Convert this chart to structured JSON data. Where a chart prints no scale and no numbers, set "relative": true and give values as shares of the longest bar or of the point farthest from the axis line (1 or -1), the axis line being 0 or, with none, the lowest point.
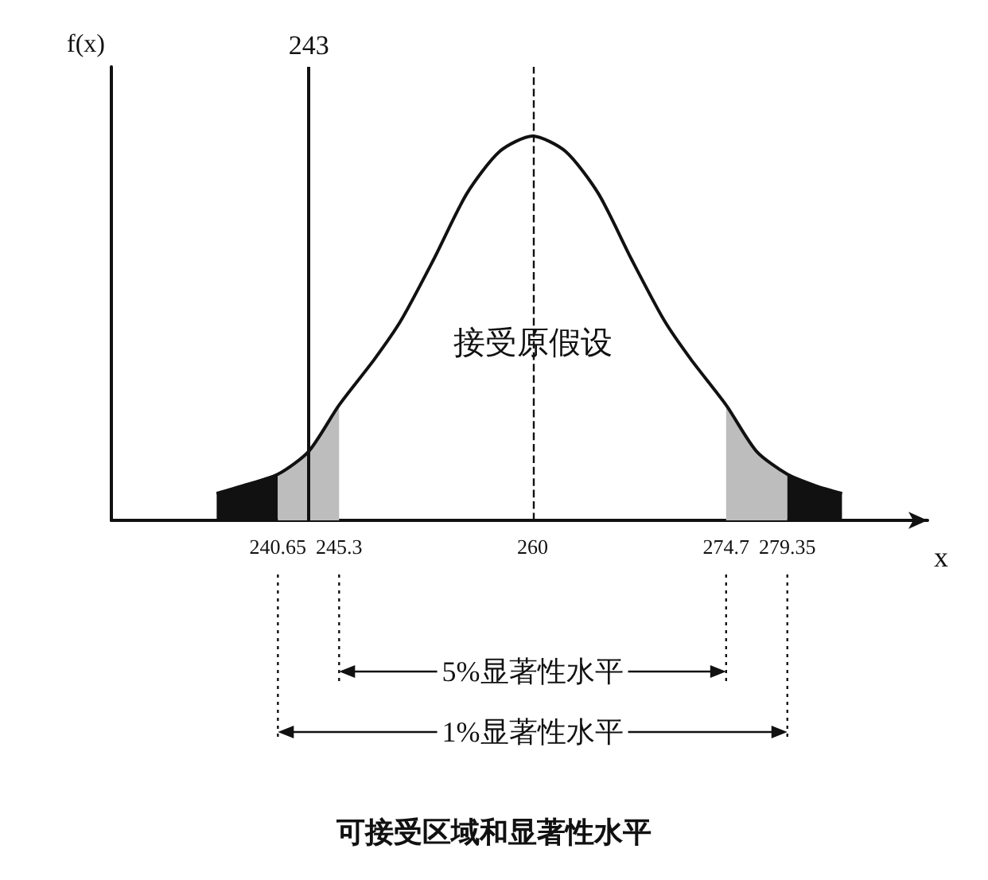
{
  "chart_data": {
    "type": "line",
    "title": "可接受区域和显著性水平",
    "xlabel": "x",
    "ylabel": "f(x)",
    "relative": true,
    "tick_labels": "x",
    "grid": false,
    "marker": "none",
    "xlim": [
      228,
      290
    ],
    "xticks": [
      240.65,
      245.3,
      260,
      274.7,
      279.35
    ],
    "series": [
      {
        "type": "area",
        "color": "#111111",
        "x": [
          236,
          238,
          240.65
        ],
        "values": [
          0.07,
          0.09,
          0.12
        ]
      },
      {
        "type": "area",
        "color": "#bdbdbd",
        "x": [
          240.65,
          243,
          245.3
        ],
        "values": [
          0.12,
          0.18,
          0.3
        ]
      },
      {
        "type": "area",
        "color": "#bdbdbd",
        "x": [
          274.7,
          277,
          279.35
        ],
        "values": [
          0.3,
          0.18,
          0.12
        ]
      },
      {
        "type": "area",
        "color": "#111111",
        "x": [
          279.35,
          281.5,
          283.5
        ],
        "values": [
          0.12,
          0.09,
          0.07
        ]
      },
      {
        "type": "line",
        "color": "#111111",
        "x": [
          236,
          238,
          240.65,
          243,
          245.3,
          248,
          250,
          252.5,
          255,
          257.5,
          260,
          262.5,
          265,
          267.5,
          270,
          272,
          274.7,
          277,
          279.35,
          281.5,
          283.5
        ],
        "values": [
          0.07,
          0.09,
          0.12,
          0.18,
          0.3,
          0.42,
          0.52,
          0.68,
          0.85,
          0.96,
          1,
          0.96,
          0.85,
          0.68,
          0.52,
          0.42,
          0.3,
          0.18,
          0.12,
          0.09,
          0.07
        ]
      }
    ],
    "ref_lines": [
      {
        "axis": "x",
        "value": 243,
        "label": "243",
        "line_style": "solid"
      },
      {
        "axis": "x",
        "value": 260,
        "label": null,
        "line_style": "dashed"
      }
    ],
    "annotations": [
      "接受原假设",
      "5%显著性水平",
      "1%显著性水平"
    ]
  }
}
